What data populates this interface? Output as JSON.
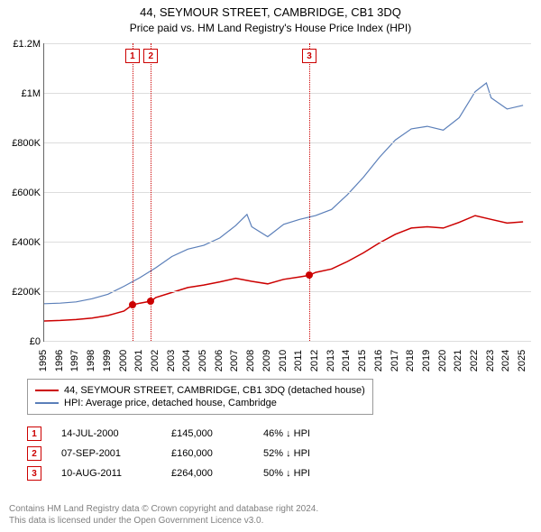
{
  "title": "44, SEYMOUR STREET, CAMBRIDGE, CB1 3DQ",
  "subtitle": "Price paid vs. HM Land Registry's House Price Index (HPI)",
  "chart": {
    "type": "line",
    "background_color": "#ffffff",
    "grid_color": "#dddddd",
    "axis_color": "#666666",
    "xlim": [
      1995,
      2025.5
    ],
    "ylim": [
      0,
      1200000
    ],
    "ytick_step": 200000,
    "y_tick_labels": [
      "£0",
      "£200K",
      "£400K",
      "£600K",
      "£800K",
      "£1M",
      "£1.2M"
    ],
    "x_ticks": [
      1995,
      1996,
      1997,
      1998,
      1999,
      2000,
      2001,
      2002,
      2003,
      2004,
      2005,
      2006,
      2007,
      2008,
      2009,
      2010,
      2011,
      2012,
      2013,
      2014,
      2015,
      2016,
      2017,
      2018,
      2019,
      2020,
      2021,
      2022,
      2023,
      2024,
      2025
    ],
    "label_fontsize": 11,
    "series": [
      {
        "name": "price_paid",
        "color": "#cc0000",
        "line_width": 1.5,
        "data": [
          [
            1995,
            80000
          ],
          [
            1996,
            82000
          ],
          [
            1997,
            86000
          ],
          [
            1998,
            92000
          ],
          [
            1999,
            102000
          ],
          [
            2000,
            120000
          ],
          [
            2000.53,
            145000
          ],
          [
            2001,
            152000
          ],
          [
            2001.68,
            160000
          ],
          [
            2002,
            175000
          ],
          [
            2003,
            195000
          ],
          [
            2004,
            215000
          ],
          [
            2005,
            225000
          ],
          [
            2006,
            238000
          ],
          [
            2007,
            252000
          ],
          [
            2008,
            240000
          ],
          [
            2009,
            230000
          ],
          [
            2010,
            248000
          ],
          [
            2011,
            258000
          ],
          [
            2011.61,
            264000
          ],
          [
            2012,
            276000
          ],
          [
            2013,
            290000
          ],
          [
            2014,
            320000
          ],
          [
            2015,
            355000
          ],
          [
            2016,
            395000
          ],
          [
            2017,
            430000
          ],
          [
            2018,
            455000
          ],
          [
            2019,
            460000
          ],
          [
            2020,
            455000
          ],
          [
            2021,
            478000
          ],
          [
            2022,
            505000
          ],
          [
            2023,
            490000
          ],
          [
            2024,
            475000
          ],
          [
            2025,
            480000
          ]
        ]
      },
      {
        "name": "hpi",
        "color": "#5b7fb9",
        "line_width": 1.2,
        "data": [
          [
            1995,
            150000
          ],
          [
            1996,
            152000
          ],
          [
            1997,
            157000
          ],
          [
            1998,
            170000
          ],
          [
            1999,
            188000
          ],
          [
            2000,
            220000
          ],
          [
            2001,
            255000
          ],
          [
            2002,
            295000
          ],
          [
            2003,
            340000
          ],
          [
            2004,
            370000
          ],
          [
            2005,
            385000
          ],
          [
            2006,
            415000
          ],
          [
            2007,
            465000
          ],
          [
            2007.7,
            510000
          ],
          [
            2008,
            460000
          ],
          [
            2009,
            420000
          ],
          [
            2010,
            470000
          ],
          [
            2011,
            490000
          ],
          [
            2012,
            505000
          ],
          [
            2013,
            530000
          ],
          [
            2014,
            590000
          ],
          [
            2015,
            660000
          ],
          [
            2016,
            740000
          ],
          [
            2017,
            810000
          ],
          [
            2018,
            855000
          ],
          [
            2019,
            865000
          ],
          [
            2020,
            850000
          ],
          [
            2021,
            900000
          ],
          [
            2022,
            1005000
          ],
          [
            2022.7,
            1040000
          ],
          [
            2023,
            980000
          ],
          [
            2024,
            935000
          ],
          [
            2025,
            950000
          ]
        ]
      }
    ],
    "markers": [
      {
        "n": "1",
        "x": 2000.53,
        "y": 145000,
        "color": "#cc0000"
      },
      {
        "n": "2",
        "x": 2001.68,
        "y": 160000,
        "color": "#cc0000"
      },
      {
        "n": "3",
        "x": 2011.61,
        "y": 264000,
        "color": "#cc0000"
      }
    ]
  },
  "legend": {
    "items": [
      {
        "color": "#cc0000",
        "label": "44, SEYMOUR STREET, CAMBRIDGE, CB1 3DQ (detached house)"
      },
      {
        "color": "#5b7fb9",
        "label": "HPI: Average price, detached house, Cambridge"
      }
    ]
  },
  "events": [
    {
      "n": "1",
      "color": "#cc0000",
      "date": "14-JUL-2000",
      "price": "£145,000",
      "diff": "46% ↓ HPI"
    },
    {
      "n": "2",
      "color": "#cc0000",
      "date": "07-SEP-2001",
      "price": "£160,000",
      "diff": "52% ↓ HPI"
    },
    {
      "n": "3",
      "color": "#cc0000",
      "date": "10-AUG-2011",
      "price": "£264,000",
      "diff": "50% ↓ HPI"
    }
  ],
  "footer": {
    "line1": "Contains HM Land Registry data © Crown copyright and database right 2024.",
    "line2": "This data is licensed under the Open Government Licence v3.0."
  }
}
